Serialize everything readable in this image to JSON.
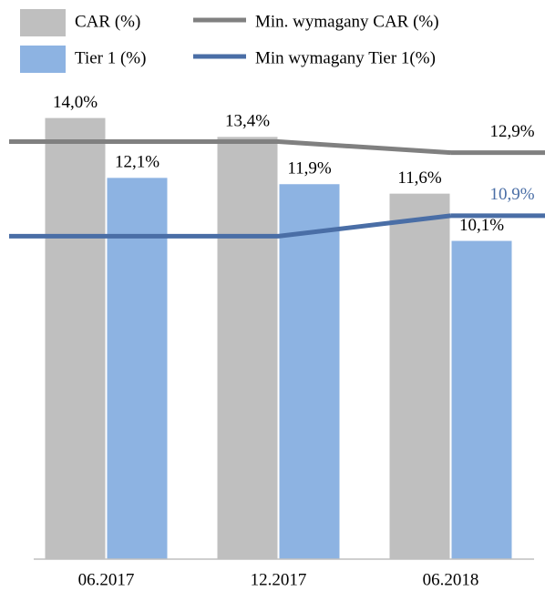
{
  "chart_data": {
    "type": "bar_line",
    "categories": [
      "06.2017",
      "12.2017",
      "06.2018"
    ],
    "ylim": [
      0,
      15
    ],
    "series": [
      {
        "name": "CAR (%)",
        "kind": "bar",
        "color": "#bfbfbf",
        "values": [
          14.0,
          13.4,
          11.6
        ],
        "value_labels": [
          "14,0%",
          "13,4%",
          "11,6%"
        ]
      },
      {
        "name": "Tier 1 (%)",
        "kind": "bar",
        "color": "#8db3e2",
        "values": [
          12.1,
          11.9,
          10.1
        ],
        "value_labels": [
          "12,1%",
          "11,9%",
          "10,1%"
        ]
      },
      {
        "name": "Min. wymagany CAR (%)",
        "kind": "line",
        "color": "#808080",
        "values": [
          13.25,
          13.25,
          12.9
        ],
        "value_labels": [
          null,
          null,
          "12,9%"
        ]
      },
      {
        "name": "Min wymagany Tier 1(%)",
        "kind": "line",
        "color": "#4a6ea6",
        "values": [
          10.25,
          10.25,
          10.9
        ],
        "value_labels": [
          null,
          null,
          "10,9%"
        ]
      }
    ]
  }
}
